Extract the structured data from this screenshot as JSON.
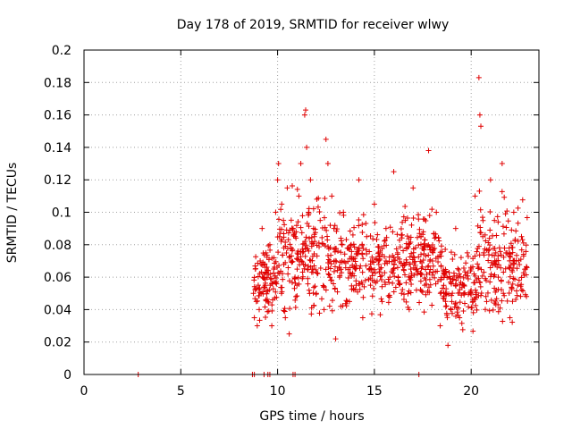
{
  "chart_data": {
    "type": "scatter",
    "title": "Day 178 of 2019, SRMTID for receiver wlwy",
    "xlabel": "GPS time / hours",
    "ylabel": "SRMTID / TECUs",
    "xlim": [
      0,
      23.5
    ],
    "ylim": [
      0,
      0.2
    ],
    "grid": true,
    "marker": "+",
    "color": "#e00000",
    "x_ticks": [
      0,
      5,
      10,
      15,
      20
    ],
    "y_ticks": [
      0,
      0.02,
      0.04,
      0.06,
      0.08,
      0.1,
      0.12,
      0.14,
      0.16,
      0.18,
      0.2
    ],
    "x_tick_labels": [
      "0",
      "5",
      "10",
      "15",
      "20"
    ],
    "y_tick_labels": [
      "0",
      "0.02",
      "0.04",
      "0.06",
      "0.08",
      "0.1",
      "0.12",
      "0.14",
      "0.16",
      "0.18",
      "0.2"
    ],
    "series": [
      {
        "name": "SRMTID",
        "points": [
          [
            2.8,
            0
          ],
          [
            8.7,
            0
          ],
          [
            8.8,
            0
          ],
          [
            9.3,
            0
          ],
          [
            9.5,
            0
          ],
          [
            9.6,
            0
          ],
          [
            10.8,
            0
          ],
          [
            10.9,
            0
          ],
          [
            17.3,
            0
          ],
          [
            8.75,
            0.05
          ],
          [
            8.8,
            0.035
          ],
          [
            8.85,
            0.065
          ],
          [
            8.9,
            0.045
          ],
          [
            8.95,
            0.03
          ],
          [
            9.0,
            0.055
          ],
          [
            9.05,
            0.04
          ],
          [
            9.1,
            0.07
          ],
          [
            9.15,
            0.05
          ],
          [
            9.2,
            0.09
          ],
          [
            9.3,
            0.06
          ],
          [
            9.4,
            0.075
          ],
          [
            9.5,
            0.045
          ],
          [
            9.6,
            0.08
          ],
          [
            9.7,
            0.03
          ],
          [
            9.8,
            0.065
          ],
          [
            9.9,
            0.1
          ],
          [
            10.0,
            0.12
          ],
          [
            10.05,
            0.13
          ],
          [
            10.1,
            0.085
          ],
          [
            10.2,
            0.05
          ],
          [
            10.3,
            0.095
          ],
          [
            10.4,
            0.035
          ],
          [
            10.5,
            0.115
          ],
          [
            10.6,
            0.025
          ],
          [
            10.7,
            0.07
          ],
          [
            10.8,
            0.09
          ],
          [
            10.9,
            0.06
          ],
          [
            11.0,
            0.055
          ],
          [
            11.1,
            0.11
          ],
          [
            11.2,
            0.13
          ],
          [
            11.3,
            0.075
          ],
          [
            11.4,
            0.16
          ],
          [
            11.45,
            0.163
          ],
          [
            11.5,
            0.14
          ],
          [
            11.6,
            0.1
          ],
          [
            11.7,
            0.12
          ],
          [
            11.8,
            0.065
          ],
          [
            11.9,
            0.085
          ],
          [
            12.0,
            0.05
          ],
          [
            12.2,
            0.095
          ],
          [
            12.4,
            0.04
          ],
          [
            12.5,
            0.145
          ],
          [
            12.6,
            0.13
          ],
          [
            12.7,
            0.07
          ],
          [
            12.8,
            0.11
          ],
          [
            13.0,
            0.022
          ],
          [
            13.2,
            0.06
          ],
          [
            13.4,
            0.1
          ],
          [
            13.6,
            0.045
          ],
          [
            13.8,
            0.08
          ],
          [
            14.0,
            0.065
          ],
          [
            14.2,
            0.12
          ],
          [
            14.4,
            0.035
          ],
          [
            14.6,
            0.085
          ],
          [
            14.8,
            0.055
          ],
          [
            15.0,
            0.105
          ],
          [
            15.2,
            0.07
          ],
          [
            15.4,
            0.045
          ],
          [
            15.6,
            0.09
          ],
          [
            15.8,
            0.06
          ],
          [
            16.0,
            0.125
          ],
          [
            16.2,
            0.075
          ],
          [
            16.4,
            0.05
          ],
          [
            16.6,
            0.095
          ],
          [
            16.8,
            0.04
          ],
          [
            17.0,
            0.115
          ],
          [
            17.2,
            0.065
          ],
          [
            17.4,
            0.085
          ],
          [
            17.6,
            0.055
          ],
          [
            17.8,
            0.138
          ],
          [
            18.0,
            0.07
          ],
          [
            18.2,
            0.1
          ],
          [
            18.4,
            0.03
          ],
          [
            18.6,
            0.06
          ],
          [
            18.8,
            0.018
          ],
          [
            19.0,
            0.045
          ],
          [
            19.2,
            0.09
          ],
          [
            19.4,
            0.035
          ],
          [
            19.6,
            0.055
          ],
          [
            19.8,
            0.075
          ],
          [
            20.0,
            0.065
          ],
          [
            20.2,
            0.11
          ],
          [
            20.4,
            0.183
          ],
          [
            20.45,
            0.16
          ],
          [
            20.5,
            0.153
          ],
          [
            20.6,
            0.085
          ],
          [
            20.8,
            0.045
          ],
          [
            21.0,
            0.12
          ],
          [
            21.2,
            0.095
          ],
          [
            21.4,
            0.06
          ],
          [
            21.6,
            0.13
          ],
          [
            21.8,
            0.075
          ],
          [
            22.0,
            0.035
          ],
          [
            22.2,
            0.1
          ],
          [
            22.4,
            0.055
          ],
          [
            22.6,
            0.085
          ],
          [
            22.8,
            0.065
          ]
        ]
      }
    ],
    "density_note_bands": [
      {
        "x_start": 8.7,
        "x_end": 10.0,
        "y_min": 0.025,
        "y_max": 0.09
      },
      {
        "x_start": 10.0,
        "x_end": 12.5,
        "y_min": 0.025,
        "y_max": 0.12
      },
      {
        "x_start": 12.5,
        "x_end": 18.5,
        "y_min": 0.03,
        "y_max": 0.11
      },
      {
        "x_start": 18.5,
        "x_end": 20.3,
        "y_min": 0.02,
        "y_max": 0.09
      },
      {
        "x_start": 20.3,
        "x_end": 22.9,
        "y_min": 0.02,
        "y_max": 0.12
      }
    ]
  }
}
